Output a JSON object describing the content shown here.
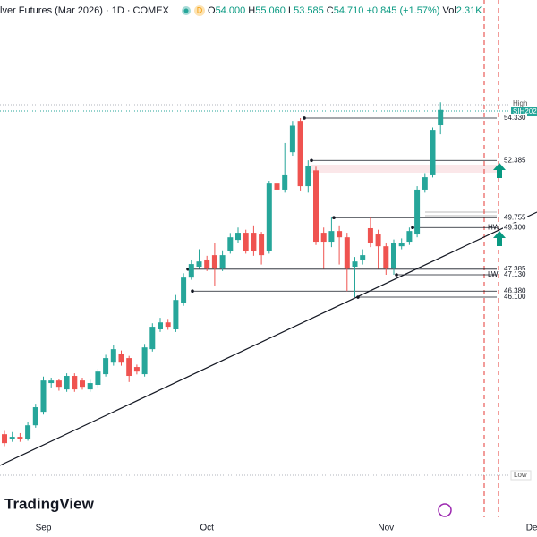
{
  "header": {
    "symbol": "lver Futures (Mar 2026) · 1D · COMEX",
    "badge": "D",
    "open_label": "O",
    "open": "54.000",
    "high_label": "H",
    "high": "55.060",
    "low_label": "L",
    "low": "53.585",
    "close_label": "C",
    "close": "54.710",
    "change": "+0.845 (+1.57%)",
    "volume_label": "Vol",
    "volume": "2.31K"
  },
  "brand": "TradingView",
  "chart_data": {
    "type": "candlestick",
    "categories": [
      null,
      null,
      null,
      null,
      null,
      "Sep",
      null,
      null,
      null,
      null,
      null,
      null,
      null,
      null,
      null,
      null,
      null,
      null,
      null,
      null,
      null,
      null,
      null,
      null,
      null,
      null,
      "Oct",
      null,
      null,
      null,
      null,
      null,
      null,
      null,
      null,
      null,
      null,
      null,
      null,
      null,
      null,
      null,
      null,
      null,
      null,
      null,
      null,
      null,
      null,
      "Nov",
      null,
      null,
      null,
      null,
      null,
      null,
      null,
      null,
      null,
      null,
      null,
      null,
      null,
      null,
      null,
      null,
      null,
      null,
      "Dec"
    ],
    "open": [
      39.8,
      39.6,
      39.68,
      39.6,
      40.21,
      40.83,
      42.15,
      42.27,
      41.86,
      42.48,
      42.27,
      41.86,
      42.07,
      42.56,
      43.09,
      43.51,
      43.3,
      42.89,
      42.56,
      43.71,
      44.62,
      44.94,
      44.62,
      45.85,
      47.0,
      47.5,
      47.83,
      48.03,
      47.41,
      48.24,
      48.73,
      49.06,
      49.06,
      48.98,
      48.24,
      51.32,
      51.04,
      52.76,
      54.2,
      51.2,
      51.93,
      49.06,
      48.65,
      49.14,
      48.85,
      47.5,
      47.83,
      49.27,
      48.98,
      48.44,
      47.41,
      48.44,
      48.65,
      48.98,
      51.04,
      51.74,
      54.0,
      null,
      null,
      null,
      null,
      null,
      null,
      null,
      null,
      null,
      null,
      null,
      null
    ],
    "high": [
      39.95,
      39.9,
      39.85,
      40.35,
      41.2,
      42.45,
      42.4,
      42.35,
      42.6,
      42.6,
      42.4,
      42.3,
      42.8,
      43.45,
      43.9,
      43.65,
      43.4,
      43.0,
      43.95,
      44.9,
      45.15,
      45.1,
      46.2,
      47.2,
      47.8,
      48.3,
      48.0,
      48.6,
      48.25,
      49.05,
      49.3,
      49.2,
      49.4,
      49.1,
      51.45,
      51.5,
      53.18,
      54.2,
      54.33,
      52.39,
      52.1,
      49.3,
      49.76,
      49.4,
      49.06,
      47.95,
      48.3,
      49.76,
      49.2,
      48.6,
      48.75,
      48.8,
      49.3,
      51.2,
      51.8,
      53.9,
      55.06,
      null,
      null,
      null,
      null,
      null,
      null,
      null,
      null,
      null,
      null,
      null,
      null
    ],
    "low": [
      39.25,
      39.45,
      39.45,
      39.5,
      40.1,
      40.7,
      41.95,
      41.8,
      41.75,
      41.75,
      41.85,
      41.75,
      41.95,
      42.45,
      42.95,
      42.95,
      42.2,
      42.55,
      42.45,
      43.6,
      44.5,
      44.6,
      44.5,
      45.7,
      46.9,
      47.4,
      47.3,
      46.6,
      47.3,
      48.1,
      48.6,
      48.1,
      48.0,
      47.6,
      48.1,
      49.2,
      50.9,
      52.6,
      51.0,
      50.9,
      48.5,
      47.4,
      48.4,
      47.6,
      46.38,
      46.1,
      47.6,
      48.4,
      47.4,
      47.13,
      47.13,
      48.3,
      48.5,
      48.85,
      50.9,
      51.6,
      53.585,
      null,
      null,
      null,
      null,
      null,
      null,
      null,
      null,
      null,
      null,
      null,
      null
    ],
    "close": [
      39.39,
      39.68,
      39.6,
      40.21,
      41.04,
      42.27,
      42.27,
      41.98,
      42.48,
      41.86,
      41.98,
      42.15,
      42.68,
      43.3,
      43.71,
      43.09,
      42.48,
      42.68,
      43.79,
      44.74,
      44.94,
      44.74,
      45.97,
      47.0,
      47.62,
      47.74,
      47.41,
      47.41,
      48.03,
      48.85,
      49.06,
      48.24,
      48.24,
      48.03,
      51.32,
      51.04,
      51.74,
      53.98,
      51.2,
      52.15,
      48.65,
      48.65,
      49.14,
      48.85,
      47.41,
      47.74,
      48.03,
      48.57,
      48.44,
      47.41,
      48.57,
      48.57,
      49.14,
      51.04,
      51.61,
      53.79,
      54.71,
      null,
      null,
      null,
      null,
      null,
      null,
      null,
      null,
      null,
      null,
      null,
      null
    ],
    "up_color": "#26a69a",
    "down_color": "#ef5350",
    "ylim": [
      36.31,
      59.76
    ],
    "levels": [
      {
        "value": 54.33,
        "label": "54.330"
      },
      {
        "value": 52.385,
        "label": "52.385"
      },
      {
        "value": 49.755,
        "label": "49.755"
      },
      {
        "value": 49.3,
        "label": "49.300"
      },
      {
        "value": 47.385,
        "label": "47.385"
      },
      {
        "value": 47.13,
        "label": "47.130"
      },
      {
        "value": 46.38,
        "label": "46.380"
      },
      {
        "value": 46.1,
        "label": "46.100"
      }
    ],
    "level_tags": [
      null,
      null,
      null,
      "HW",
      null,
      "LW",
      null,
      null
    ],
    "high_tag": "High",
    "low_tag": "Low",
    "symbol_tag": "SIH2026"
  }
}
